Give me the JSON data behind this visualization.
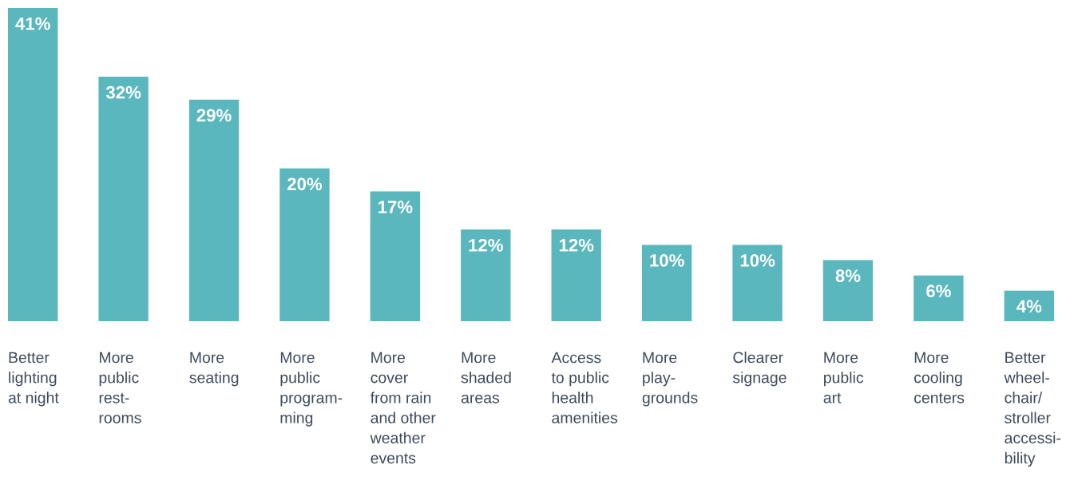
{
  "chart_data": {
    "type": "bar",
    "categories": [
      "Better\nlighting\nat night",
      "More\npublic\nrest-\nrooms",
      "More\nseating",
      "More\npublic\nprogram-\nming",
      "More\ncover\nfrom rain\nand other\nweather\nevents",
      "More\nshaded\nareas",
      "Access\nto public\nhealth\namenities",
      "More\nplay-\ngrounds",
      "Clearer\nsignage",
      "More\npublic\nart",
      "More\ncooling\ncenters",
      "Better\nwheel-\nchair/\nstroller\naccessi-\nbility"
    ],
    "values": [
      41,
      32,
      29,
      20,
      17,
      12,
      12,
      10,
      10,
      8,
      6,
      4
    ],
    "value_labels": [
      "41%",
      "32%",
      "29%",
      "20%",
      "17%",
      "12%",
      "12%",
      "10%",
      "10%",
      "8%",
      "6%",
      "4%"
    ],
    "color": "#5ab7bd"
  }
}
